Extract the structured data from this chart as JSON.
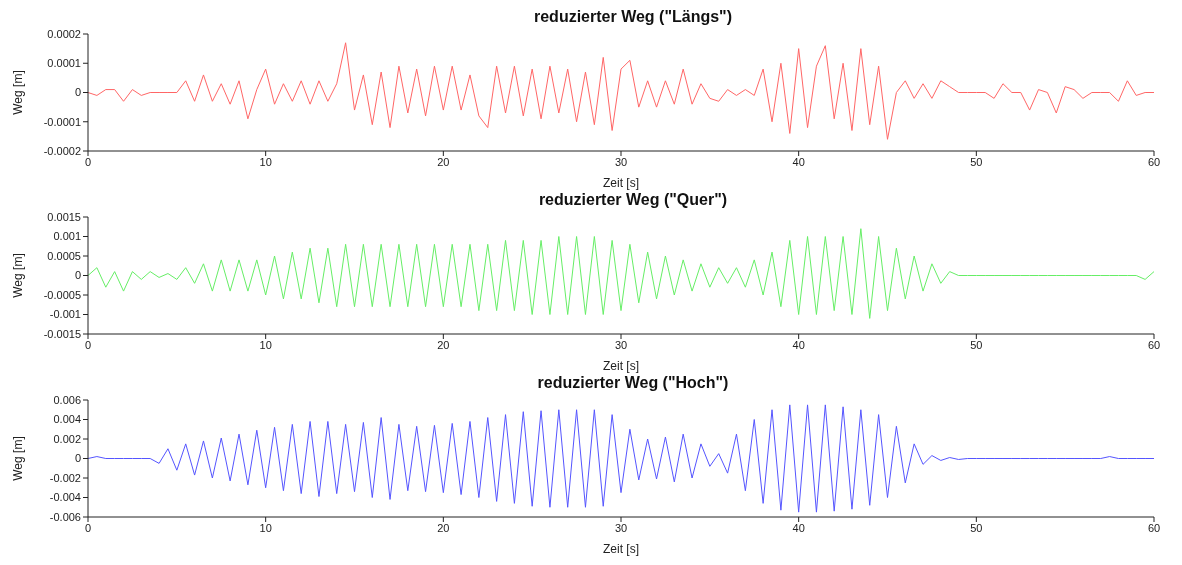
{
  "chart_data": [
    {
      "type": "line",
      "title": "reduzierter Weg (\"Längs\")",
      "xlabel": "Zeit [s]",
      "ylabel": "Weg [m]",
      "x": [
        0,
        0.5,
        1,
        1.5,
        2,
        2.5,
        3,
        3.5,
        4,
        4.5,
        5,
        5.5,
        6,
        6.5,
        7,
        7.5,
        8,
        8.5,
        9,
        9.5,
        10,
        10.5,
        11,
        11.5,
        12,
        12.5,
        13,
        13.5,
        14,
        14.5,
        15,
        15.5,
        16,
        16.5,
        17,
        17.5,
        18,
        18.5,
        19,
        19.5,
        20,
        20.5,
        21,
        21.5,
        22,
        22.5,
        23,
        23.5,
        24,
        24.5,
        25,
        25.5,
        26,
        26.5,
        27,
        27.5,
        28,
        28.5,
        29,
        29.5,
        30,
        30.5,
        31,
        31.5,
        32,
        32.5,
        33,
        33.5,
        34,
        34.5,
        35,
        35.5,
        36,
        36.5,
        37,
        37.5,
        38,
        38.5,
        39,
        39.5,
        40,
        40.5,
        41,
        41.5,
        42,
        42.5,
        43,
        43.5,
        44,
        44.5,
        45,
        45.5,
        46,
        46.5,
        47,
        47.5,
        48,
        48.5,
        49,
        49.5,
        50,
        50.5,
        51,
        51.5,
        52,
        52.5,
        53,
        53.5,
        54,
        54.5,
        55,
        55.5,
        56,
        56.5,
        57,
        57.5,
        58,
        58.5,
        59,
        59.5,
        60
      ],
      "series": [
        {
          "color": "#ff6666",
          "values": [
            0,
            -1e-05,
            1e-05,
            1e-05,
            -3e-05,
            1e-05,
            -1e-05,
            0,
            0,
            0,
            0,
            4e-05,
            -3e-05,
            6e-05,
            -3e-05,
            3e-05,
            -4e-05,
            4e-05,
            -9e-05,
            1e-05,
            8e-05,
            -4e-05,
            3e-05,
            -3e-05,
            4e-05,
            -4e-05,
            4e-05,
            -3e-05,
            3e-05,
            0.00017,
            -6e-05,
            6e-05,
            -0.00011,
            7e-05,
            -0.00012,
            9e-05,
            -7e-05,
            8e-05,
            -8e-05,
            9e-05,
            -6e-05,
            9e-05,
            -6e-05,
            6e-05,
            -8e-05,
            -0.00012,
            9e-05,
            -7e-05,
            9e-05,
            -8e-05,
            8e-05,
            -9e-05,
            9e-05,
            -7e-05,
            8e-05,
            -0.0001,
            7e-05,
            -0.00011,
            0.00012,
            -0.00013,
            8e-05,
            0.00011,
            -5e-05,
            4e-05,
            -5e-05,
            4e-05,
            -4e-05,
            8e-05,
            -4e-05,
            3e-05,
            -2e-05,
            -3e-05,
            1e-05,
            -1e-05,
            1e-05,
            -1e-05,
            8e-05,
            -0.0001,
            0.0001,
            -0.00014,
            0.00015,
            -0.00012,
            9e-05,
            0.00016,
            -9e-05,
            0.0001,
            -0.00013,
            0.00015,
            -0.00011,
            9e-05,
            -0.00016,
            0,
            4e-05,
            -2e-05,
            3e-05,
            -2e-05,
            4e-05,
            2e-05,
            0,
            0,
            0,
            0,
            -2e-05,
            3e-05,
            0,
            0,
            -6e-05,
            1e-05,
            0,
            -7e-05,
            2e-05,
            1e-05,
            -2e-05,
            0,
            0,
            0,
            -3e-05,
            4e-05,
            -1e-05,
            0,
            0
          ]
        }
      ],
      "xlim": [
        0,
        60
      ],
      "xticks": [
        0,
        10,
        20,
        30,
        40,
        50,
        60
      ],
      "ylim": [
        -0.0002,
        0.0002
      ],
      "yticks": [
        -0.0002,
        -0.0001,
        0,
        0.0001,
        0.0002
      ]
    },
    {
      "type": "line",
      "title": "reduzierter Weg (\"Quer\")",
      "xlabel": "Zeit [s]",
      "ylabel": "Weg [m]",
      "x": [
        0,
        0.5,
        1,
        1.5,
        2,
        2.5,
        3,
        3.5,
        4,
        4.5,
        5,
        5.5,
        6,
        6.5,
        7,
        7.5,
        8,
        8.5,
        9,
        9.5,
        10,
        10.5,
        11,
        11.5,
        12,
        12.5,
        13,
        13.5,
        14,
        14.5,
        15,
        15.5,
        16,
        16.5,
        17,
        17.5,
        18,
        18.5,
        19,
        19.5,
        20,
        20.5,
        21,
        21.5,
        22,
        22.5,
        23,
        23.5,
        24,
        24.5,
        25,
        25.5,
        26,
        26.5,
        27,
        27.5,
        28,
        28.5,
        29,
        29.5,
        30,
        30.5,
        31,
        31.5,
        32,
        32.5,
        33,
        33.5,
        34,
        34.5,
        35,
        35.5,
        36,
        36.5,
        37,
        37.5,
        38,
        38.5,
        39,
        39.5,
        40,
        40.5,
        41,
        41.5,
        42,
        42.5,
        43,
        43.5,
        44,
        44.5,
        45,
        45.5,
        46,
        46.5,
        47,
        47.5,
        48,
        48.5,
        49,
        49.5,
        50,
        50.5,
        51,
        51.5,
        52,
        52.5,
        53,
        53.5,
        54,
        54.5,
        55,
        55.5,
        56,
        56.5,
        57,
        57.5,
        58,
        58.5,
        59,
        59.5,
        60
      ],
      "series": [
        {
          "color": "#66ee66",
          "values": [
            0,
            0.0002,
            -0.0003,
            0.0001,
            -0.0004,
            0.0001,
            -0.0001,
            0.0001,
            -5e-05,
            5e-05,
            -0.0001,
            0.0002,
            -0.0002,
            0.0003,
            -0.0004,
            0.0004,
            -0.0004,
            0.0004,
            -0.0004,
            0.0004,
            -0.0005,
            0.0005,
            -0.0006,
            0.0006,
            -0.0006,
            0.0007,
            -0.0007,
            0.0007,
            -0.0008,
            0.0008,
            -0.0008,
            0.0008,
            -0.0008,
            0.0008,
            -0.0008,
            0.0008,
            -0.0008,
            0.0008,
            -0.0008,
            0.0008,
            -0.0008,
            0.0008,
            -0.0008,
            0.0008,
            -0.0009,
            0.0008,
            -0.0009,
            0.0009,
            -0.0009,
            0.0009,
            -0.001,
            0.0009,
            -0.001,
            0.001,
            -0.001,
            0.001,
            -0.001,
            0.001,
            -0.001,
            0.0009,
            -0.0009,
            0.0008,
            -0.0007,
            0.0006,
            -0.0006,
            0.0005,
            -0.0005,
            0.0004,
            -0.0004,
            0.0003,
            -0.0003,
            0.0002,
            -0.0002,
            0.0002,
            -0.0003,
            0.0004,
            -0.0005,
            0.0006,
            -0.0008,
            0.0009,
            -0.001,
            0.001,
            -0.001,
            0.001,
            -0.0009,
            0.001,
            -0.001,
            0.0012,
            -0.0011,
            0.001,
            -0.0009,
            0.0007,
            -0.0006,
            0.0005,
            -0.0004,
            0.0003,
            -0.0002,
            0.0001,
            0,
            0,
            0,
            0,
            0,
            0,
            0,
            0,
            0,
            0,
            0,
            0,
            0,
            0,
            0,
            0,
            0,
            0,
            0,
            0,
            0,
            -0.0001,
            0.0001
          ]
        }
      ],
      "xlim": [
        0,
        60
      ],
      "xticks": [
        0,
        10,
        20,
        30,
        40,
        50,
        60
      ],
      "ylim": [
        -0.0015,
        0.0015
      ],
      "yticks": [
        -0.0015,
        -0.001,
        -0.0005,
        0,
        0.0005,
        0.001,
        0.0015
      ]
    },
    {
      "type": "line",
      "title": "reduzierter Weg (\"Hoch\")",
      "xlabel": "Zeit [s]",
      "ylabel": "Weg [m]",
      "x": [
        0,
        0.5,
        1,
        1.5,
        2,
        2.5,
        3,
        3.5,
        4,
        4.5,
        5,
        5.5,
        6,
        6.5,
        7,
        7.5,
        8,
        8.5,
        9,
        9.5,
        10,
        10.5,
        11,
        11.5,
        12,
        12.5,
        13,
        13.5,
        14,
        14.5,
        15,
        15.5,
        16,
        16.5,
        17,
        17.5,
        18,
        18.5,
        19,
        19.5,
        20,
        20.5,
        21,
        21.5,
        22,
        22.5,
        23,
        23.5,
        24,
        24.5,
        25,
        25.5,
        26,
        26.5,
        27,
        27.5,
        28,
        28.5,
        29,
        29.5,
        30,
        30.5,
        31,
        31.5,
        32,
        32.5,
        33,
        33.5,
        34,
        34.5,
        35,
        35.5,
        36,
        36.5,
        37,
        37.5,
        38,
        38.5,
        39,
        39.5,
        40,
        40.5,
        41,
        41.5,
        42,
        42.5,
        43,
        43.5,
        44,
        44.5,
        45,
        45.5,
        46,
        46.5,
        47,
        47.5,
        48,
        48.5,
        49,
        49.5,
        50,
        50.5,
        51,
        51.5,
        52,
        52.5,
        53,
        53.5,
        54,
        54.5,
        55,
        55.5,
        56,
        56.5,
        57,
        57.5,
        58,
        58.5,
        59,
        59.5,
        60
      ],
      "series": [
        {
          "color": "#5555ff",
          "values": [
            0,
            0.0002,
            0,
            0,
            0,
            0,
            0,
            0,
            -0.0005,
            0.001,
            -0.0012,
            0.0015,
            -0.0017,
            0.0018,
            -0.002,
            0.0021,
            -0.0023,
            0.0025,
            -0.0027,
            0.0029,
            -0.003,
            0.0032,
            -0.0033,
            0.0035,
            -0.0036,
            0.0038,
            -0.0039,
            0.0038,
            -0.0036,
            0.0035,
            -0.0034,
            0.0037,
            -0.004,
            0.0042,
            -0.0042,
            0.0035,
            -0.0033,
            0.0033,
            -0.0034,
            0.0034,
            -0.0035,
            0.0036,
            -0.0037,
            0.0038,
            -0.004,
            0.0042,
            -0.0044,
            0.0045,
            -0.0046,
            0.0048,
            -0.0049,
            0.0049,
            -0.005,
            0.005,
            -0.005,
            0.005,
            -0.005,
            0.005,
            -0.0049,
            0.0045,
            -0.0035,
            0.003,
            -0.0022,
            0.002,
            -0.0021,
            0.0022,
            -0.0024,
            0.0025,
            -0.002,
            0.0015,
            -0.0008,
            0.0005,
            -0.0015,
            0.0025,
            -0.0033,
            0.004,
            -0.0046,
            0.005,
            -0.0053,
            0.0055,
            -0.0055,
            0.0055,
            -0.0055,
            0.0055,
            -0.0054,
            0.0053,
            -0.0052,
            0.005,
            -0.0048,
            0.0045,
            -0.004,
            0.0033,
            -0.0025,
            0.0015,
            -0.0006,
            0.0003,
            -0.0002,
            0.0001,
            -0.0001,
            0,
            0,
            0,
            0,
            0,
            0,
            0,
            0,
            0,
            0,
            0,
            0,
            0,
            0,
            0,
            0,
            0.0002,
            0,
            0,
            0,
            0,
            0
          ]
        }
      ],
      "xlim": [
        0,
        60
      ],
      "xticks": [
        0,
        10,
        20,
        30,
        40,
        50,
        60
      ],
      "ylim": [
        -0.006,
        0.006
      ],
      "yticks": [
        -0.006,
        -0.004,
        -0.002,
        0,
        0.002,
        0.004,
        0.006
      ]
    }
  ]
}
